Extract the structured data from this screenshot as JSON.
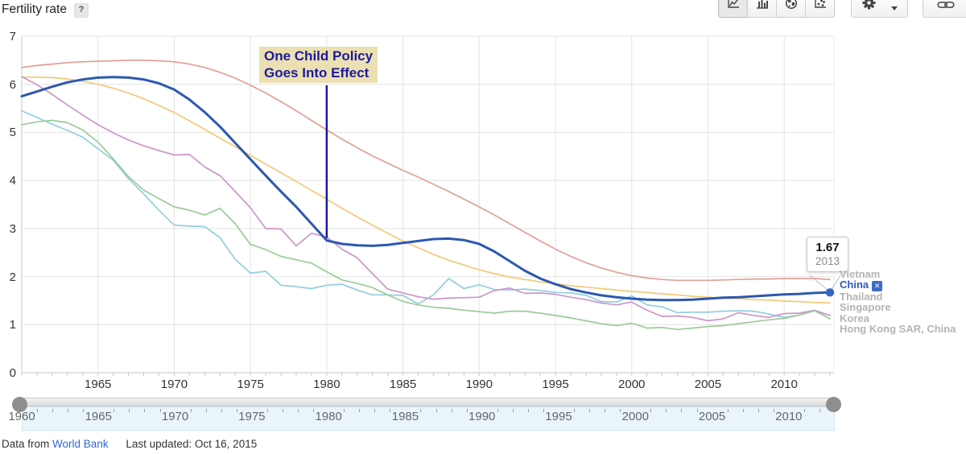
{
  "header": {
    "title": "Fertility rate",
    "help_label": "?"
  },
  "toolbar": {
    "chart_type_buttons": [
      {
        "name": "line-chart",
        "selected": true
      },
      {
        "name": "bar-chart",
        "selected": false
      },
      {
        "name": "map",
        "selected": false
      },
      {
        "name": "scatter-plot",
        "selected": false
      }
    ],
    "settings_button": "gear-with-caret",
    "link_button": "link"
  },
  "chart_data": {
    "type": "line",
    "ylabel": "Fertility rate",
    "ylim": [
      0,
      7
    ],
    "yticks": [
      0,
      1,
      2,
      3,
      4,
      5,
      6,
      7
    ],
    "xticks": [
      1965,
      1970,
      1975,
      1980,
      1985,
      1990,
      1995,
      2000,
      2005,
      2010
    ],
    "x": {
      "start": 1960,
      "end": 2013,
      "step": 1
    },
    "grid": true,
    "legend_position": "right",
    "series": [
      {
        "name": "Vietnam",
        "color": "#e2a096",
        "width": 1.7,
        "values": [
          6.35,
          6.39,
          6.42,
          6.45,
          6.47,
          6.48,
          6.49,
          6.5,
          6.5,
          6.49,
          6.47,
          6.42,
          6.35,
          6.25,
          6.13,
          5.98,
          5.82,
          5.64,
          5.45,
          5.25,
          5.05,
          4.86,
          4.68,
          4.51,
          4.36,
          4.21,
          4.07,
          3.92,
          3.77,
          3.61,
          3.45,
          3.28,
          3.1,
          2.92,
          2.74,
          2.57,
          2.42,
          2.29,
          2.18,
          2.09,
          2.02,
          1.97,
          1.94,
          1.92,
          1.92,
          1.92,
          1.93,
          1.94,
          1.95,
          1.95,
          1.96,
          1.96,
          1.96,
          1.94
        ]
      },
      {
        "name": "China",
        "color": "#2d58af",
        "width": 3,
        "values": [
          5.75,
          5.85,
          5.95,
          6.04,
          6.1,
          6.14,
          6.15,
          6.14,
          6.1,
          6.02,
          5.89,
          5.68,
          5.42,
          5.12,
          4.78,
          4.44,
          4.1,
          3.77,
          3.45,
          3.1,
          2.75,
          2.68,
          2.65,
          2.64,
          2.66,
          2.7,
          2.74,
          2.78,
          2.79,
          2.76,
          2.68,
          2.52,
          2.32,
          2.12,
          1.96,
          1.84,
          1.74,
          1.67,
          1.61,
          1.57,
          1.54,
          1.52,
          1.51,
          1.51,
          1.52,
          1.54,
          1.56,
          1.57,
          1.59,
          1.61,
          1.63,
          1.64,
          1.66,
          1.67
        ]
      },
      {
        "name": "Thailand",
        "color": "#f3c978",
        "width": 1.7,
        "values": [
          6.15,
          6.15,
          6.14,
          6.11,
          6.06,
          6.0,
          5.92,
          5.82,
          5.7,
          5.56,
          5.41,
          5.24,
          5.06,
          4.88,
          4.7,
          4.52,
          4.34,
          4.16,
          3.98,
          3.79,
          3.61,
          3.42,
          3.24,
          3.07,
          2.9,
          2.74,
          2.6,
          2.46,
          2.34,
          2.24,
          2.14,
          2.06,
          1.99,
          1.94,
          1.89,
          1.85,
          1.81,
          1.78,
          1.75,
          1.72,
          1.69,
          1.67,
          1.64,
          1.62,
          1.59,
          1.57,
          1.55,
          1.54,
          1.52,
          1.51,
          1.49,
          1.48,
          1.46,
          1.45
        ]
      },
      {
        "name": "Singapore",
        "color": "#92cede",
        "width": 1.7,
        "values": [
          5.45,
          5.31,
          5.17,
          5.04,
          4.9,
          4.66,
          4.42,
          4.04,
          3.72,
          3.38,
          3.07,
          3.05,
          3.04,
          2.81,
          2.36,
          2.07,
          2.11,
          1.82,
          1.79,
          1.75,
          1.82,
          1.84,
          1.72,
          1.62,
          1.62,
          1.61,
          1.43,
          1.62,
          1.96,
          1.75,
          1.83,
          1.73,
          1.72,
          1.74,
          1.71,
          1.67,
          1.66,
          1.61,
          1.48,
          1.47,
          1.6,
          1.41,
          1.37,
          1.25,
          1.26,
          1.26,
          1.28,
          1.29,
          1.28,
          1.22,
          1.15,
          1.2,
          1.29,
          1.19
        ]
      },
      {
        "name": "Korea",
        "color": "#cb96cb",
        "width": 1.7,
        "values": [
          6.16,
          5.99,
          5.79,
          5.57,
          5.36,
          5.16,
          4.99,
          4.84,
          4.72,
          4.62,
          4.53,
          4.54,
          4.28,
          4.1,
          3.77,
          3.43,
          3.0,
          2.99,
          2.64,
          2.9,
          2.82,
          2.57,
          2.39,
          2.06,
          1.74,
          1.66,
          1.58,
          1.53,
          1.55,
          1.56,
          1.57,
          1.71,
          1.76,
          1.65,
          1.66,
          1.63,
          1.57,
          1.52,
          1.45,
          1.41,
          1.47,
          1.3,
          1.17,
          1.18,
          1.15,
          1.08,
          1.12,
          1.25,
          1.19,
          1.15,
          1.23,
          1.24,
          1.3,
          1.19
        ]
      },
      {
        "name": "Hong Kong SAR, China",
        "color": "#9bcb99",
        "width": 1.7,
        "values": [
          5.16,
          5.22,
          5.25,
          5.2,
          5.05,
          4.8,
          4.45,
          4.08,
          3.8,
          3.62,
          3.45,
          3.38,
          3.28,
          3.42,
          3.1,
          2.67,
          2.56,
          2.42,
          2.35,
          2.28,
          2.1,
          1.93,
          1.86,
          1.77,
          1.62,
          1.48,
          1.41,
          1.36,
          1.34,
          1.3,
          1.27,
          1.24,
          1.28,
          1.28,
          1.24,
          1.19,
          1.14,
          1.08,
          1.02,
          0.98,
          1.03,
          0.93,
          0.94,
          0.9,
          0.93,
          0.96,
          0.98,
          1.02,
          1.06,
          1.1,
          1.13,
          1.2,
          1.29,
          1.12
        ]
      }
    ],
    "annotations": [
      {
        "line1": "One Child Policy",
        "line2": "Goes Into Effect",
        "year": 1980,
        "anchor_value": 2.75,
        "text_color": "#1b1b9e",
        "background": "#ece0b2"
      }
    ],
    "point_label": {
      "series": "China",
      "value": "1.67",
      "year": "2013"
    }
  },
  "legend": {
    "items": [
      {
        "label": "Vietnam",
        "active": false
      },
      {
        "label": "China",
        "active": true,
        "close_glyph": "✕"
      },
      {
        "label": "Thailand",
        "active": false
      },
      {
        "label": "Singapore",
        "active": false
      },
      {
        "label": "Korea",
        "active": false
      },
      {
        "label": "Hong Kong SAR, China",
        "active": false
      }
    ]
  },
  "tooltip": {
    "value": "1.67",
    "year": "2013"
  },
  "annotation": {
    "line1": "One Child Policy",
    "line2": "Goes Into Effect"
  },
  "slider": {
    "min": 1960,
    "max": 2013,
    "labeled_years": [
      1960,
      1965,
      1970,
      1975,
      1980,
      1985,
      1990,
      1995,
      2000,
      2005,
      2010
    ]
  },
  "footer": {
    "prefix": "Data from",
    "link": "World Bank",
    "updated": "Last updated: Oct 16, 2015"
  },
  "colors": {
    "accent_blue": "#2d58af",
    "link_blue": "#3366cc",
    "legend_gray": "#b4b4b4",
    "grid": "#e4e4e4",
    "axis": "#c9c9c9",
    "annotation_navy": "#1b1b9e",
    "annotation_bg": "#ece0b2"
  }
}
